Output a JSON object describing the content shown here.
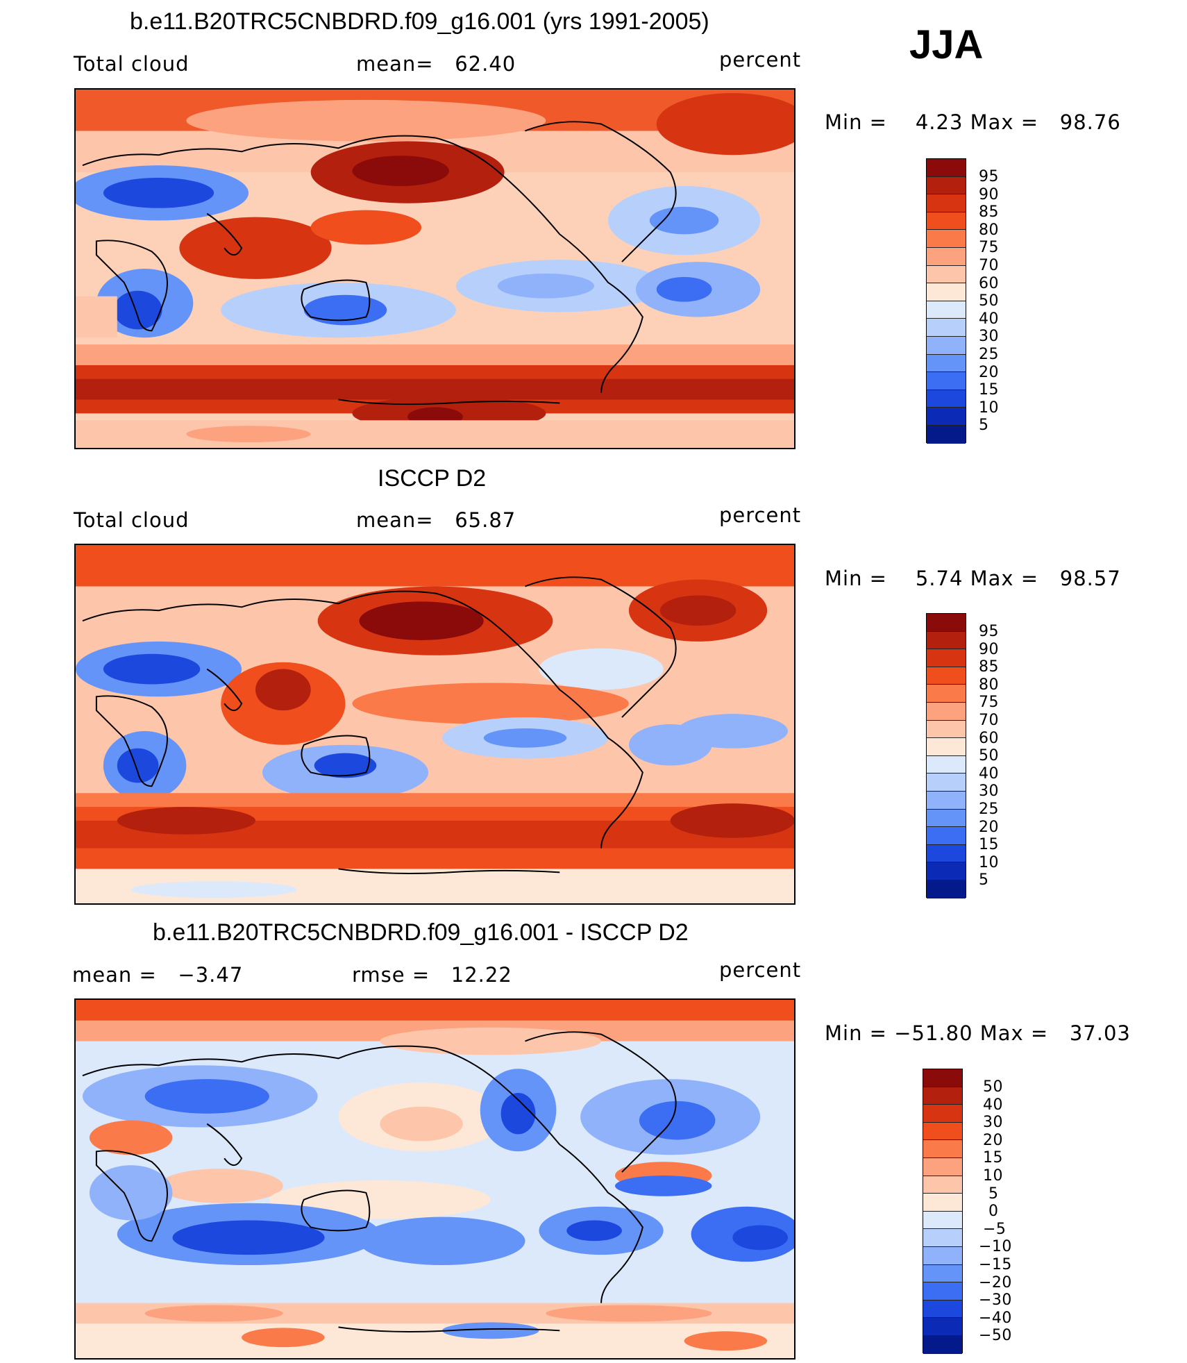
{
  "season": "JJA",
  "units": "percent",
  "panels": [
    {
      "title": "b.e11.B20TRC5CNBDRD.f09_g16.001 (yrs 1991-2005)",
      "left_label": "Total cloud",
      "center_label": "mean=   62.40",
      "right_label": "percent",
      "minmax": "Min =    4.23 Max =   98.76",
      "colorbar_labels": [
        "95",
        "90",
        "85",
        "80",
        "75",
        "70",
        "60",
        "50",
        "40",
        "30",
        "25",
        "20",
        "15",
        "10",
        "5"
      ],
      "colorbar_colors": [
        "#8b0a0a",
        "#b3200e",
        "#d73412",
        "#f04e1d",
        "#fb7a4a",
        "#fda27e",
        "#fdc6ab",
        "#fde8d8",
        "#dbe9fb",
        "#b7d0fb",
        "#8fb2fb",
        "#6594f8",
        "#3b6ef2",
        "#1c48de",
        "#0b2bb7",
        "#051a8a"
      ]
    },
    {
      "title": "ISCCP D2",
      "left_label": "Total cloud",
      "center_label": "mean=   65.87",
      "right_label": "percent",
      "minmax": "Min =    5.74 Max =   98.57",
      "colorbar_labels": [
        "95",
        "90",
        "85",
        "80",
        "75",
        "70",
        "60",
        "50",
        "40",
        "30",
        "25",
        "20",
        "15",
        "10",
        "5"
      ],
      "colorbar_colors": [
        "#8b0a0a",
        "#b3200e",
        "#d73412",
        "#f04e1d",
        "#fb7a4a",
        "#fda27e",
        "#fdc6ab",
        "#fde8d8",
        "#dbe9fb",
        "#b7d0fb",
        "#8fb2fb",
        "#6594f8",
        "#3b6ef2",
        "#1c48de",
        "#0b2bb7",
        "#051a8a"
      ]
    },
    {
      "title": "b.e11.B20TRC5CNBDRD.f09_g16.001 - ISCCP D2",
      "left_label": "mean =   −3.47",
      "center_label": "rmse =   12.22",
      "right_label": "percent",
      "minmax": "Min = −51.80 Max =   37.03",
      "colorbar_labels": [
        "50",
        "40",
        "30",
        "20",
        "15",
        "10",
        "5",
        "0",
        "−5",
        "−10",
        "−15",
        "−20",
        "−30",
        "−40",
        "−50"
      ],
      "colorbar_colors": [
        "#8b0a0a",
        "#b3200e",
        "#d73412",
        "#f04e1d",
        "#fb7a4a",
        "#fda27e",
        "#fdc6ab",
        "#fde8d8",
        "#dbe9fb",
        "#b7d0fb",
        "#8fb2fb",
        "#6594f8",
        "#3b6ef2",
        "#1c48de",
        "#0b2bb7",
        "#051a8a"
      ]
    }
  ]
}
